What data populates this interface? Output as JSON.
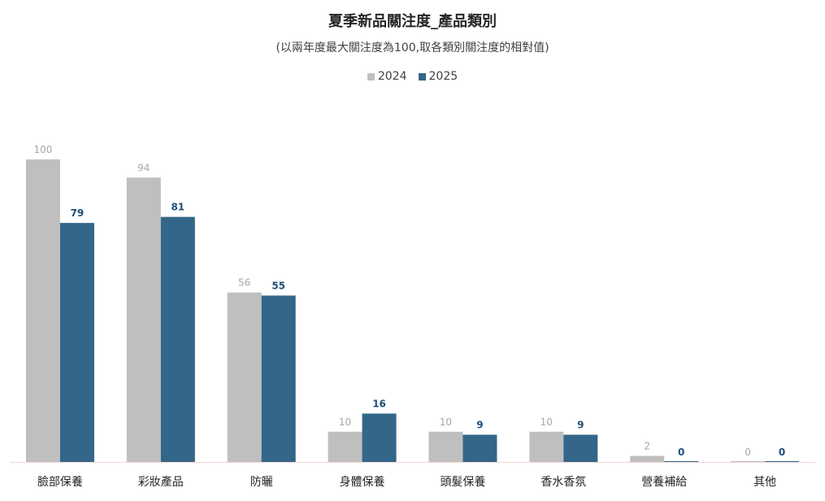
{
  "chart_data": {
    "type": "bar",
    "title": "夏季新品關注度_產品類別",
    "subtitle": "(以兩年度最大關注度為100,取各類別關注度的相對值)",
    "categories": [
      "臉部保養",
      "彩妝產品",
      "防曬",
      "身體保養",
      "頭髮保養",
      "香水香氛",
      "營養補給",
      "其他"
    ],
    "series": [
      {
        "name": "2024",
        "color": "#bfbfbf",
        "label_color": "#a6a6a6",
        "values": [
          100,
          94,
          56,
          10,
          10,
          10,
          2,
          0
        ]
      },
      {
        "name": "2025",
        "color": "#336688",
        "label_color": "#1f4e79",
        "values": [
          79,
          81,
          55,
          16,
          9,
          9,
          0,
          0
        ]
      }
    ],
    "ylim": [
      0,
      100
    ],
    "grid": false,
    "legend_position": "top-center",
    "axis_color": "#f2d7d5"
  }
}
